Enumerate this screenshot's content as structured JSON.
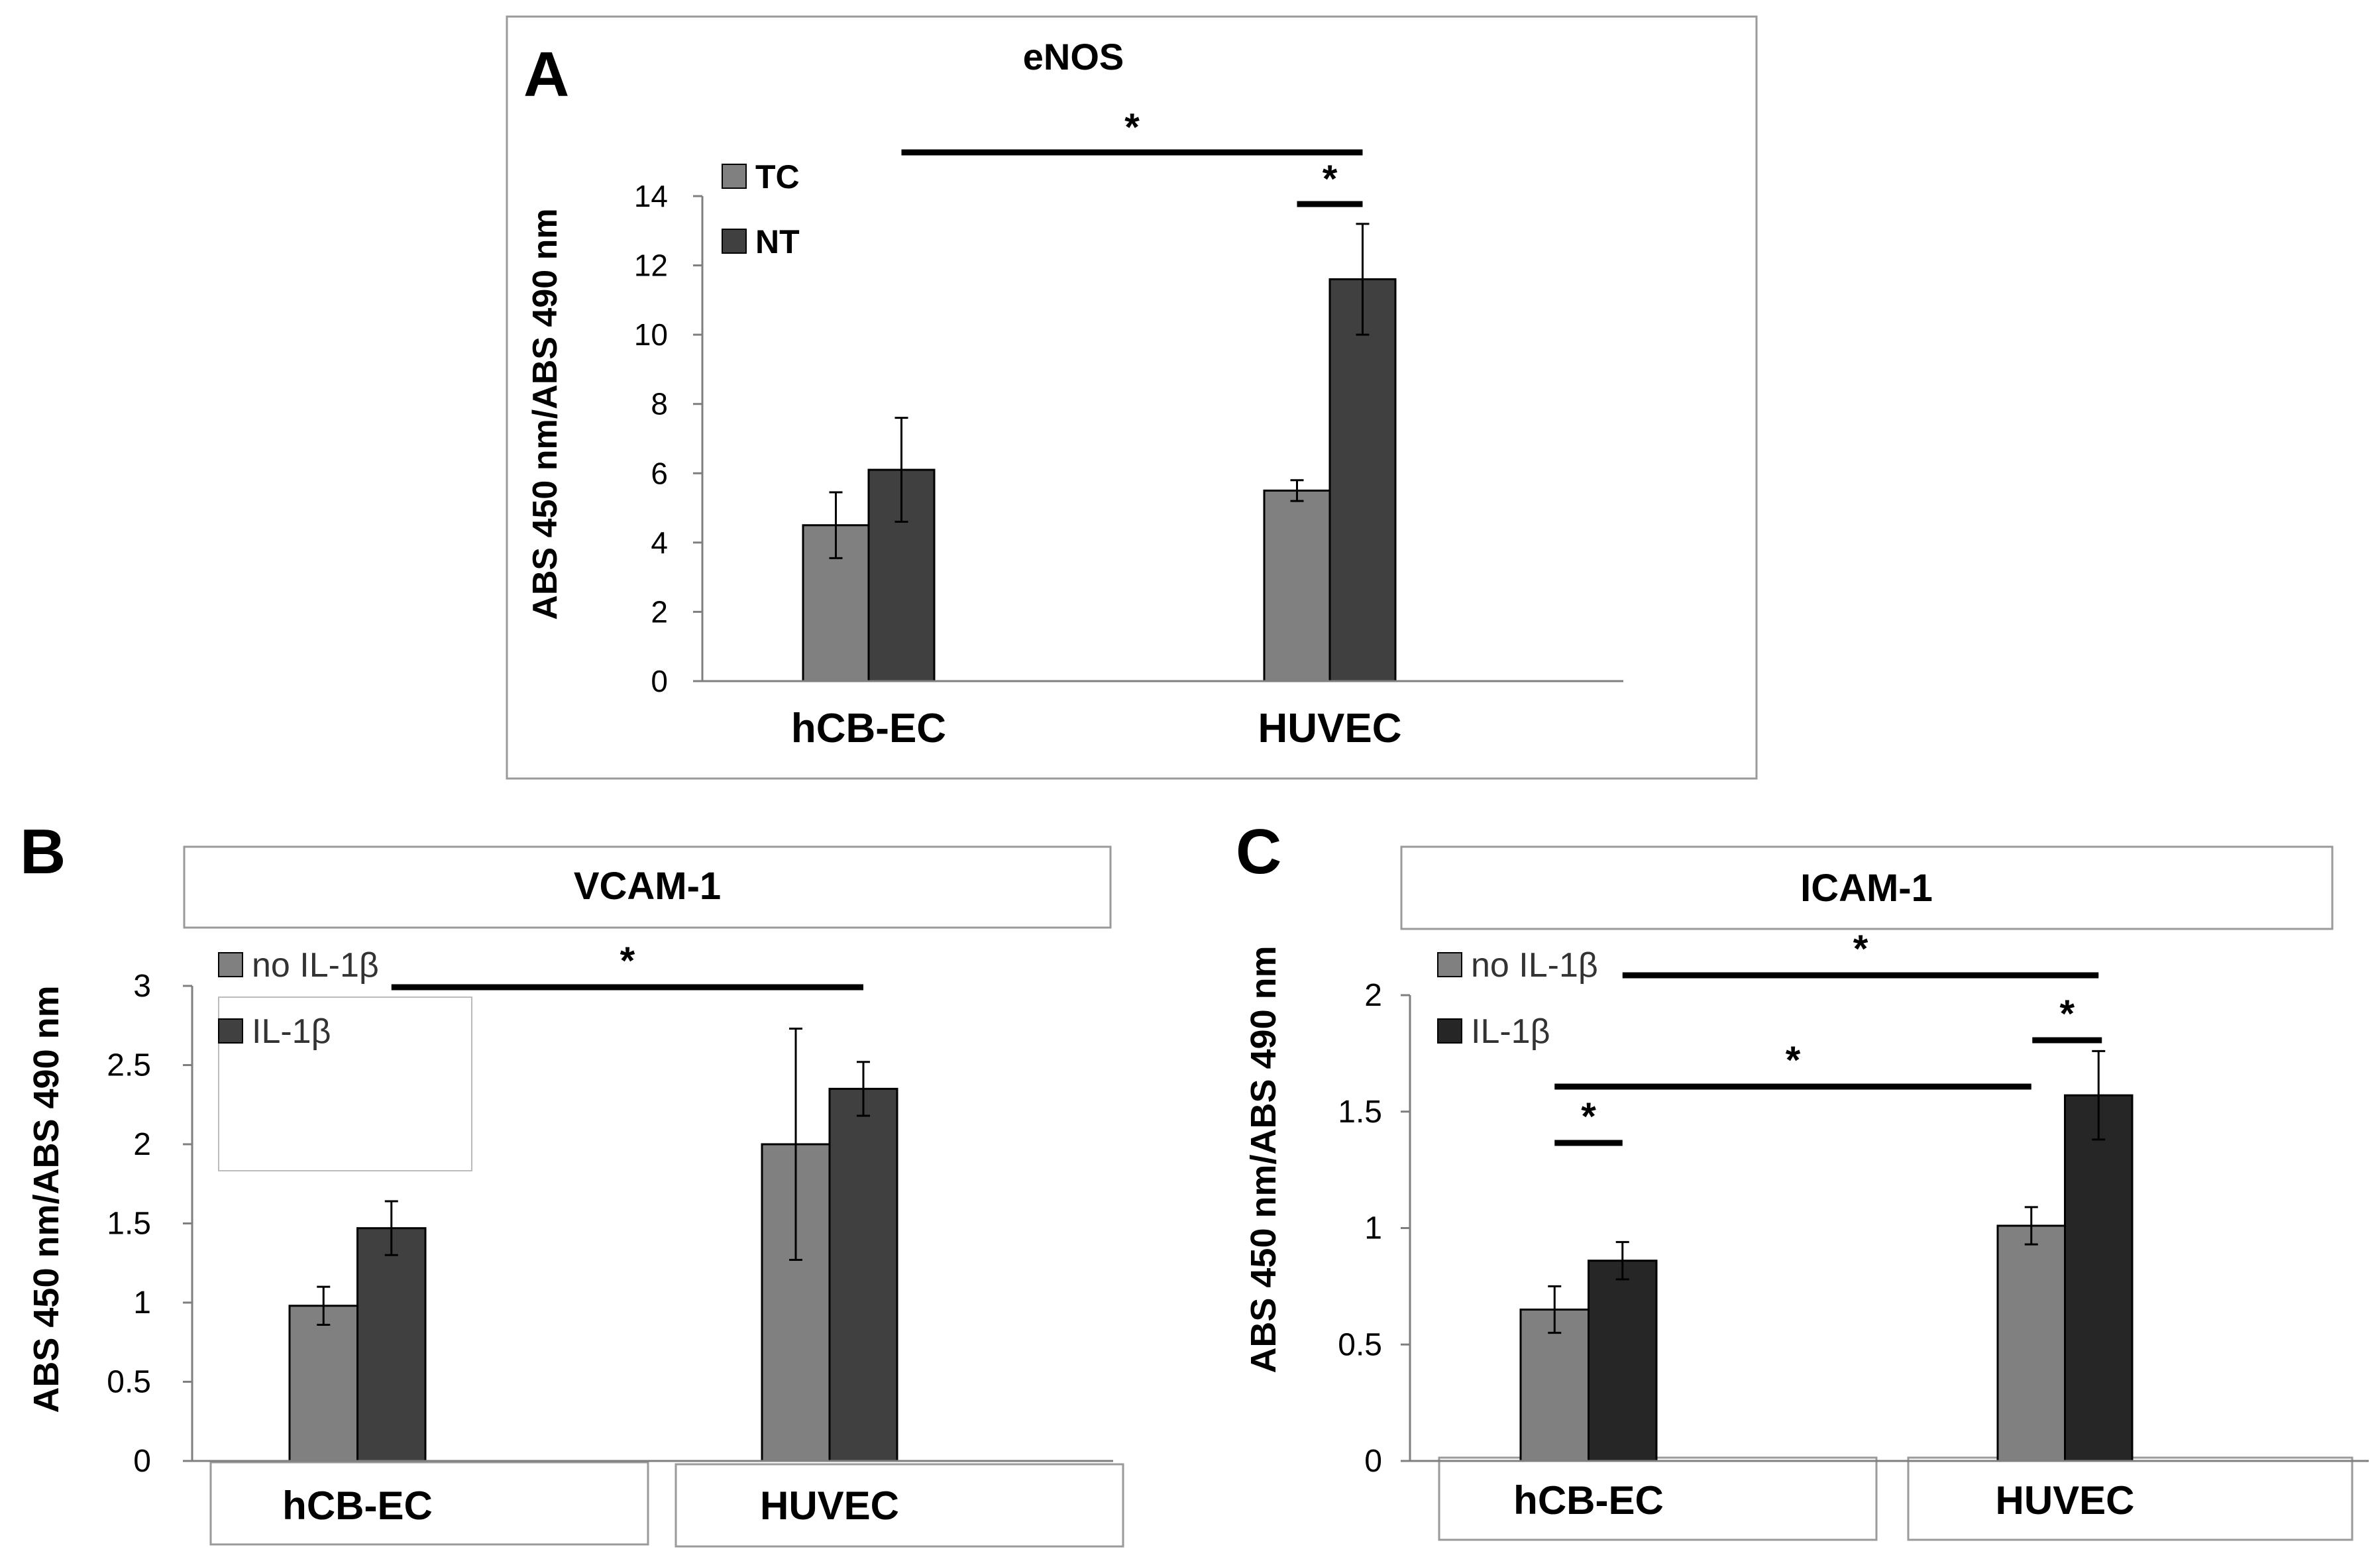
{
  "chart_data": [
    {
      "panel": "A",
      "type": "bar",
      "title": "eNOS",
      "ylabel": "ABS 450 nm/ABS 490 nm",
      "xlabel": "",
      "categories": [
        "hCB-EC",
        "HUVEC"
      ],
      "ylim": [
        0,
        14
      ],
      "yticks": [
        "0",
        "2",
        "4",
        "6",
        "8",
        "10",
        "12",
        "14"
      ],
      "legend_position": "top-left",
      "grid": false,
      "series": [
        {
          "name": "TC",
          "values": [
            4.5,
            5.5
          ],
          "errors": [
            0.95,
            0.3
          ],
          "color": "#808080"
        },
        {
          "name": "NT",
          "values": [
            6.1,
            11.6
          ],
          "errors": [
            1.5,
            1.6
          ],
          "color": "#404040"
        }
      ],
      "significance": [
        {
          "label": "*",
          "from": "NT:hCB-EC",
          "to": "NT:HUVEC"
        },
        {
          "label": "*",
          "from": "TC:HUVEC",
          "to": "NT:HUVEC"
        }
      ]
    },
    {
      "panel": "B",
      "type": "bar",
      "title": "VCAM-1",
      "ylabel": "ABS 450 nm/ABS 490 nm",
      "xlabel": "",
      "categories": [
        "hCB-EC",
        "HUVEC"
      ],
      "ylim": [
        0,
        3
      ],
      "yticks": [
        "0",
        "0.5",
        "1",
        "1.5",
        "2",
        "2.5",
        "3"
      ],
      "legend_position": "top-left",
      "grid": false,
      "series": [
        {
          "name": "no IL-1β",
          "values": [
            0.98,
            2.0
          ],
          "errors": [
            0.12,
            0.73
          ],
          "color": "#808080"
        },
        {
          "name": "IL-1β",
          "values": [
            1.47,
            2.35
          ],
          "errors": [
            0.17,
            0.17
          ],
          "color": "#404040"
        }
      ],
      "significance": [
        {
          "label": "*",
          "from": "IL-1β:hCB-EC",
          "to": "IL-1β:HUVEC"
        }
      ]
    },
    {
      "panel": "C",
      "type": "bar",
      "title": "ICAM-1",
      "ylabel": "ABS 450 nm/ABS 490 nm",
      "xlabel": "",
      "categories": [
        "hCB-EC",
        "HUVEC"
      ],
      "ylim": [
        0,
        2
      ],
      "yticks": [
        "0",
        "0.5",
        "1",
        "1.5",
        "2"
      ],
      "legend_position": "top-left",
      "grid": false,
      "series": [
        {
          "name": "no IL-1β",
          "values": [
            0.65,
            1.01
          ],
          "errors": [
            0.1,
            0.08
          ],
          "color": "#808080"
        },
        {
          "name": "IL-1β",
          "values": [
            0.86,
            1.57
          ],
          "errors": [
            0.08,
            0.19
          ],
          "color": "#262626"
        }
      ],
      "significance": [
        {
          "label": "*",
          "from": "IL-1β:hCB-EC",
          "to": "IL-1β:HUVEC"
        },
        {
          "label": "*",
          "from": "IL-1β:HUVEC",
          "to": "IL-1β:HUVEC"
        },
        {
          "label": "*",
          "from": "no IL-1β:hCB-EC",
          "to": "no IL-1β:HUVEC"
        },
        {
          "label": "*",
          "from": "no IL-1β:hCB-EC",
          "to": "IL-1β:hCB-EC"
        }
      ]
    }
  ]
}
